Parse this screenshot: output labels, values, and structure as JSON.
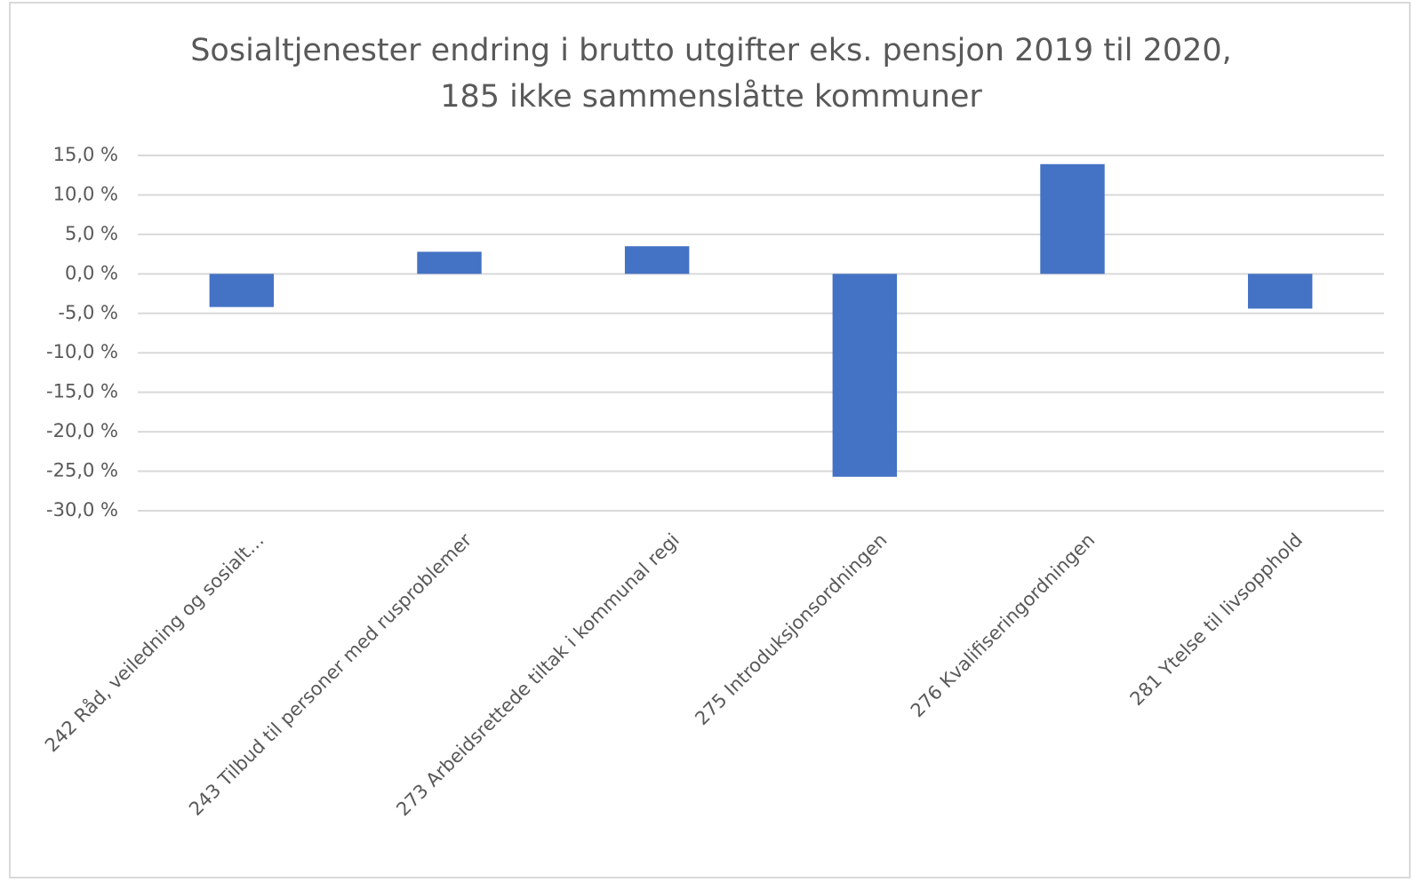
{
  "chart_data": {
    "type": "bar",
    "title": [
      "Sosialtjenester endring i brutto utgifter eks. pensjon 2019 til 2020,",
      "185 ikke sammenslåtte kommuner"
    ],
    "categories": [
      "242 Råd, veiledning og sosialt…",
      "243 Tilbud til personer med rusproblemer",
      "273 Arbeidsrettede tiltak i kommunal regi",
      "275 Introduksjonsordningen",
      "276 Kvalifiseringordningen",
      "281 Ytelse til livsopphold"
    ],
    "values": [
      -4.2,
      2.8,
      3.5,
      -25.7,
      13.9,
      -4.4
    ],
    "color": "#4472c4",
    "ylim": [
      -30,
      15
    ],
    "yticks": [
      {
        "value": 15,
        "label": "15,0 %"
      },
      {
        "value": 10,
        "label": "10,0 %"
      },
      {
        "value": 5,
        "label": "5,0 %"
      },
      {
        "value": 0,
        "label": "0,0 %"
      },
      {
        "value": -5,
        "label": "-5,0 %"
      },
      {
        "value": -10,
        "label": "-10,0 %"
      },
      {
        "value": -15,
        "label": "-15,0 %"
      },
      {
        "value": -20,
        "label": "-20,0 %"
      },
      {
        "value": -25,
        "label": "-25,0 %"
      },
      {
        "value": -30,
        "label": "-30,0 %"
      }
    ],
    "grid": true
  }
}
